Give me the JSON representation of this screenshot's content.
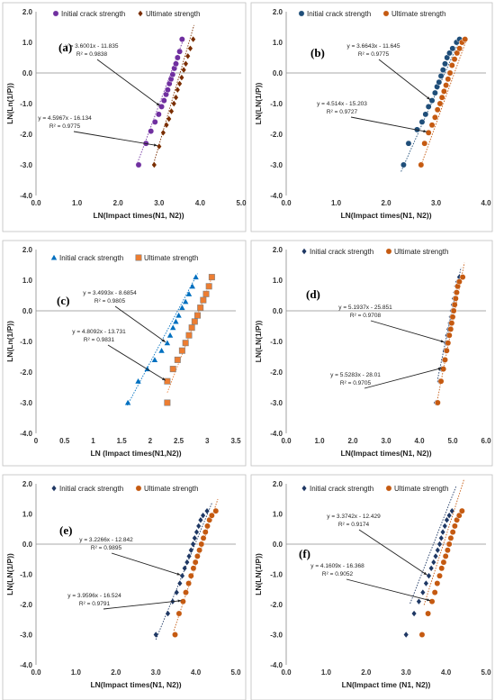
{
  "colors": {
    "a_s1": "#7030a0",
    "a_s2": "#7a2e00",
    "b_s1": "#1f4e79",
    "b_s2": "#c55a11",
    "c_s1": "#0070c0",
    "c_s2": "#ed7d31",
    "d_s1": "#1f3864",
    "d_s2": "#c55a11",
    "e_s1": "#1f3864",
    "e_s2": "#c55a11",
    "f_s1": "#1f3864",
    "f_s2": "#c55a11"
  },
  "chart_data": [
    {
      "panel": "(a)",
      "type": "scatter",
      "xlabel": "LN(Impact times(N1, N2))",
      "ylabel": "LN(Ln(1/P))",
      "xlim": [
        0,
        5
      ],
      "ylim": [
        -4,
        2
      ],
      "xticks": [
        "0.0",
        "1.0",
        "2.0",
        "3.0",
        "4.0",
        "5.0"
      ],
      "yticks": [
        "-4.0",
        "-3.0",
        "-2.0",
        "-1.0",
        "0.0",
        "1.0",
        "2.0"
      ],
      "legend_position": "top-left",
      "series": [
        {
          "name": "Initial crack strength",
          "marker": "circle",
          "color_key": "a_s1",
          "x": [
            2.5,
            2.68,
            2.8,
            2.9,
            2.99,
            3.06,
            3.12,
            3.17,
            3.21,
            3.25,
            3.29,
            3.33,
            3.37,
            3.41,
            3.45,
            3.5,
            3.56
          ],
          "y": [
            -3.0,
            -2.3,
            -1.9,
            -1.6,
            -1.35,
            -1.1,
            -0.9,
            -0.7,
            -0.55,
            -0.35,
            -0.2,
            -0.05,
            0.15,
            0.3,
            0.5,
            0.7,
            1.1
          ],
          "trend": {
            "slope": 3.6001,
            "intercept": -11.835,
            "x_range": [
              2.45,
              3.6
            ]
          }
        },
        {
          "name": "Ultimate strength",
          "marker": "diamond",
          "color_key": "a_s2",
          "x": [
            2.88,
            3.0,
            3.1,
            3.18,
            3.24,
            3.3,
            3.36,
            3.41,
            3.45,
            3.5,
            3.55,
            3.6,
            3.65,
            3.7,
            3.76,
            3.83
          ],
          "y": [
            -3.0,
            -2.4,
            -1.95,
            -1.7,
            -1.5,
            -1.25,
            -1.0,
            -0.8,
            -0.55,
            -0.35,
            -0.15,
            0.1,
            0.3,
            0.55,
            0.8,
            1.1
          ],
          "trend": {
            "slope": 4.5967,
            "intercept": -16.134,
            "x_range": [
              2.85,
              3.85
            ]
          }
        }
      ],
      "annotations": [
        {
          "text": "y = 3.6001x - 11.835",
          "text2": "R² = 0.9838",
          "series": 0
        },
        {
          "text": "y = 4.5967x - 16.134",
          "text2": "R² = 0.9775",
          "series": 1
        }
      ]
    },
    {
      "panel": "(b)",
      "type": "scatter",
      "xlabel": "LN(Impact times(N1, N2))",
      "ylabel": "LN(LN(1/P))",
      "xlim": [
        0,
        4
      ],
      "ylim": [
        -4,
        2
      ],
      "xticks": [
        "0.0",
        "1.0",
        "2.0",
        "3.0",
        "4.0"
      ],
      "yticks": [
        "-4.0",
        "-3.0",
        "-2.0",
        "-1.0",
        "0.0",
        "1.0",
        "2.0"
      ],
      "legend_position": "top-left",
      "series": [
        {
          "name": "Initial crack strength",
          "marker": "circle",
          "color_key": "b_s1",
          "x": [
            2.35,
            2.45,
            2.62,
            2.72,
            2.79,
            2.85,
            2.92,
            2.98,
            3.02,
            3.06,
            3.1,
            3.14,
            3.18,
            3.22,
            3.27,
            3.33,
            3.41,
            3.47
          ],
          "y": [
            -3.0,
            -2.3,
            -1.85,
            -1.6,
            -1.35,
            -1.1,
            -0.9,
            -0.65,
            -0.45,
            -0.3,
            -0.1,
            0.1,
            0.3,
            0.5,
            0.65,
            0.8,
            1.0,
            1.1
          ],
          "trend": {
            "slope": 3.6643,
            "intercept": -11.645,
            "x_range": [
              2.3,
              3.5
            ]
          }
        },
        {
          "name": "Ultimate strength",
          "marker": "circle",
          "color_key": "b_s2",
          "x": [
            2.7,
            2.77,
            2.85,
            2.92,
            2.98,
            3.03,
            3.08,
            3.12,
            3.16,
            3.2,
            3.24,
            3.28,
            3.32,
            3.37,
            3.42,
            3.47,
            3.52,
            3.58
          ],
          "y": [
            -3.0,
            -2.3,
            -1.95,
            -1.7,
            -1.45,
            -1.2,
            -1.0,
            -0.8,
            -0.6,
            -0.4,
            -0.2,
            0.0,
            0.25,
            0.45,
            0.65,
            0.8,
            1.0,
            1.1
          ],
          "trend": {
            "slope": 4.514,
            "intercept": -15.203,
            "x_range": [
              2.7,
              3.6
            ]
          }
        }
      ],
      "annotations": [
        {
          "text": "y = 3.6643x - 11.645",
          "text2": "R² = 0.9775",
          "series": 0
        },
        {
          "text": "y = 4.514x - 15.203",
          "text2": "R² = 0.9727",
          "series": 1
        }
      ]
    },
    {
      "panel": "(c)",
      "type": "scatter",
      "xlabel": "LN (Impact times(N1,N2))",
      "ylabel": "LN(Ln(1/P))",
      "xlim": [
        0,
        3.5
      ],
      "ylim": [
        -4,
        2
      ],
      "xticks": [
        "0",
        "0.5",
        "1",
        "1.5",
        "2",
        "2.5",
        "3",
        "3.5"
      ],
      "yticks": [
        "-4.0",
        "-3.0",
        "-2.0",
        "-1.0",
        "0.0",
        "1.0",
        "2.0"
      ],
      "legend_position": "top-left",
      "series": [
        {
          "name": "Initial crack strength",
          "marker": "triangle",
          "color_key": "c_s1",
          "x": [
            1.61,
            1.79,
            1.95,
            2.08,
            2.2,
            2.3,
            2.35,
            2.4,
            2.45,
            2.5,
            2.56,
            2.62,
            2.68,
            2.74,
            2.8
          ],
          "y": [
            -3.0,
            -2.3,
            -1.9,
            -1.6,
            -1.3,
            -1.05,
            -0.8,
            -0.55,
            -0.35,
            -0.15,
            0.1,
            0.3,
            0.55,
            0.8,
            1.1
          ],
          "trend": {
            "slope": 3.4993,
            "intercept": -8.6854,
            "x_range": [
              1.6,
              2.83
            ]
          }
        },
        {
          "name": "Ultimate strength",
          "marker": "square",
          "color_key": "c_s2",
          "x": [
            2.3,
            2.3,
            2.4,
            2.48,
            2.56,
            2.62,
            2.68,
            2.73,
            2.78,
            2.83,
            2.88,
            2.93,
            2.98,
            3.03,
            3.08
          ],
          "y": [
            -3.0,
            -2.3,
            -1.9,
            -1.6,
            -1.3,
            -1.05,
            -0.8,
            -0.55,
            -0.35,
            -0.15,
            0.1,
            0.35,
            0.55,
            0.8,
            1.1
          ],
          "trend": {
            "slope": 4.8092,
            "intercept": -13.731,
            "x_range": [
              2.3,
              3.1
            ]
          }
        }
      ],
      "annotations": [
        {
          "text": "y = 3.4993x - 8.6854",
          "text2": "R² = 0.9805",
          "series": 0
        },
        {
          "text": "y = 4.8092x - 13.731",
          "text2": "R² = 0.9831",
          "series": 1
        }
      ]
    },
    {
      "panel": "(d)",
      "type": "scatter",
      "xlabel": "LN(Impact times(N1, N2))",
      "ylabel": "LN(LN(1/P))",
      "xlim": [
        0,
        6
      ],
      "ylim": [
        -4,
        2
      ],
      "xticks": [
        "0.0",
        "1.0",
        "2.0",
        "3.0",
        "4.0",
        "5.0",
        "6.0"
      ],
      "yticks": [
        "-4.0",
        "-3.0",
        "-2.0",
        "-1.0",
        "0.0",
        "1.0",
        "2.0"
      ],
      "legend_position": "top-left",
      "series": [
        {
          "name": "Initial crack strength",
          "marker": "diamond",
          "color_key": "d_s1",
          "x": [
            4.5,
            4.6,
            4.66,
            4.72,
            4.77,
            4.8,
            4.84,
            4.88,
            4.92,
            4.95,
            4.98,
            5.01,
            5.04,
            5.08,
            5.11,
            5.15,
            5.2
          ],
          "y": [
            -3.0,
            -2.3,
            -1.9,
            -1.6,
            -1.3,
            -1.05,
            -0.8,
            -0.6,
            -0.4,
            -0.2,
            0.0,
            0.2,
            0.4,
            0.6,
            0.8,
            0.95,
            1.1
          ],
          "trend": {
            "slope": 5.1937,
            "intercept": -25.851,
            "x_range": [
              4.55,
              5.25
            ]
          }
        },
        {
          "name": "Ultimate strength",
          "marker": "circle",
          "color_key": "d_s2",
          "x": [
            4.55,
            4.65,
            4.72,
            4.77,
            4.82,
            4.86,
            4.9,
            4.94,
            4.97,
            5.0,
            5.03,
            5.06,
            5.09,
            5.12,
            5.15,
            5.2,
            5.3
          ],
          "y": [
            -3.0,
            -2.3,
            -1.9,
            -1.6,
            -1.3,
            -1.05,
            -0.8,
            -0.6,
            -0.4,
            -0.2,
            0.0,
            0.2,
            0.4,
            0.6,
            0.8,
            0.95,
            1.1
          ],
          "trend": {
            "slope": 5.5283,
            "intercept": -28.01,
            "x_range": [
              4.55,
              5.35
            ]
          }
        }
      ],
      "annotations": [
        {
          "text": "y = 5.1937x - 25.851",
          "text2": "R² = 0.9708",
          "series": 0
        },
        {
          "text": "y = 5.5283x - 28.01",
          "text2": "R² = 0.9705",
          "series": 1
        }
      ]
    },
    {
      "panel": "(e)",
      "type": "scatter",
      "xlabel": "LN(Impact times(N1, N2))",
      "ylabel": "LN(LN(1/P))",
      "xlim": [
        0,
        5
      ],
      "ylim": [
        -4,
        2
      ],
      "xticks": [
        "0.0",
        "1.0",
        "2.0",
        "3.0",
        "4.0",
        "5.0"
      ],
      "yticks": [
        "-4.0",
        "-3.0",
        "-2.0",
        "-1.0",
        "0.0",
        "1.0",
        "2.0"
      ],
      "legend_position": "top-left",
      "series": [
        {
          "name": "Initial crack strength",
          "marker": "diamond",
          "color_key": "e_s1",
          "x": [
            3.0,
            3.3,
            3.42,
            3.52,
            3.6,
            3.66,
            3.72,
            3.78,
            3.83,
            3.88,
            3.93,
            3.97,
            4.02,
            4.07,
            4.12,
            4.18,
            4.28
          ],
          "y": [
            -3.0,
            -2.3,
            -1.9,
            -1.6,
            -1.3,
            -1.05,
            -0.8,
            -0.6,
            -0.4,
            -0.2,
            0.0,
            0.2,
            0.4,
            0.6,
            0.8,
            0.95,
            1.1
          ],
          "trend": {
            "slope": 3.2266,
            "intercept": -12.842,
            "x_range": [
              3.0,
              4.4
            ]
          }
        },
        {
          "name": "Ultimate strength",
          "marker": "circle",
          "color_key": "e_s2",
          "x": [
            3.48,
            3.58,
            3.68,
            3.75,
            3.82,
            3.88,
            3.94,
            3.99,
            4.04,
            4.09,
            4.14,
            4.19,
            4.24,
            4.29,
            4.34,
            4.4,
            4.5
          ],
          "y": [
            -3.0,
            -2.3,
            -1.9,
            -1.6,
            -1.3,
            -1.05,
            -0.8,
            -0.6,
            -0.4,
            -0.2,
            0.0,
            0.2,
            0.4,
            0.6,
            0.8,
            0.95,
            1.1
          ],
          "trend": {
            "slope": 3.9596,
            "intercept": -16.524,
            "x_range": [
              3.45,
              4.55
            ]
          }
        }
      ],
      "annotations": [
        {
          "text": "y = 3.2266x - 12.842",
          "text2": "R² = 0.9895",
          "series": 0
        },
        {
          "text": "y = 3.9596x - 16.524",
          "text2": "R² = 0.9791",
          "series": 1
        }
      ]
    },
    {
      "panel": "(f)",
      "type": "scatter",
      "xlabel": "LN(Impact time (N1, N2))",
      "ylabel": "LN(LN(1/P))",
      "xlim": [
        0,
        5
      ],
      "ylim": [
        -4,
        2
      ],
      "xticks": [
        "0.0",
        "1.0",
        "2.0",
        "3.0",
        "4.0",
        "5.0"
      ],
      "yticks": [
        "-4.0",
        "-3.0",
        "-2.0",
        "-1.0",
        "0.0",
        "1.0",
        "2.0"
      ],
      "legend_position": "top-left",
      "series": [
        {
          "name": "Initial crack strength",
          "marker": "diamond",
          "color_key": "f_s1",
          "x": [
            3.0,
            3.2,
            3.32,
            3.42,
            3.5,
            3.57,
            3.63,
            3.69,
            3.74,
            3.79,
            3.84,
            3.88,
            3.92,
            3.97,
            4.02,
            4.08,
            4.15
          ],
          "y": [
            -3.0,
            -2.3,
            -1.9,
            -1.6,
            -1.3,
            -1.05,
            -0.8,
            -0.6,
            -0.4,
            -0.2,
            0.0,
            0.2,
            0.4,
            0.6,
            0.8,
            0.95,
            1.1
          ],
          "trend": {
            "slope": 3.3742,
            "intercept": -12.429,
            "x_range": [
              3.1,
              4.25
            ]
          }
        },
        {
          "name": "Ultimate strength",
          "marker": "circle",
          "color_key": "f_s2",
          "x": [
            3.4,
            3.55,
            3.65,
            3.72,
            3.78,
            3.84,
            3.89,
            3.94,
            3.99,
            4.04,
            4.08,
            4.12,
            4.17,
            4.22,
            4.27,
            4.33,
            4.4
          ],
          "y": [
            -3.0,
            -2.3,
            -1.9,
            -1.6,
            -1.3,
            -1.05,
            -0.8,
            -0.6,
            -0.4,
            -0.2,
            0.0,
            0.2,
            0.4,
            0.6,
            0.8,
            0.95,
            1.1
          ],
          "trend": {
            "slope": 4.1609,
            "intercept": -16.368,
            "x_range": [
              3.45,
              4.45
            ]
          }
        }
      ],
      "annotations": [
        {
          "text": "y = 3.3742x - 12.429",
          "text2": "R² = 0.9174",
          "series": 0
        },
        {
          "text": "y = 4.1609x - 16.368",
          "text2": "R² = 0.9052",
          "series": 1
        }
      ]
    }
  ]
}
